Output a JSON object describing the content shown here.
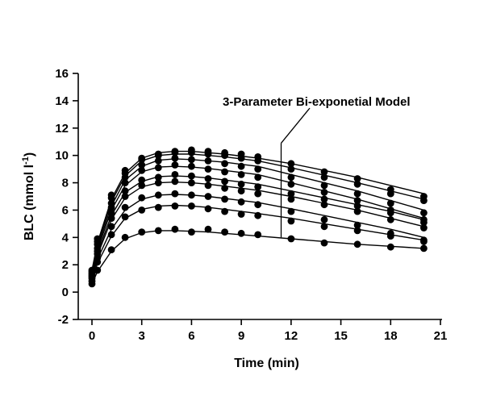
{
  "chart_data": {
    "type": "scatter",
    "xlabel": "Time (min)",
    "ylabel_main": "BLC (mmol l",
    "ylabel_sup": "-1",
    "ylabel_close": ")",
    "xlim": [
      -1,
      21
    ],
    "ylim": [
      -2,
      16
    ],
    "xticks": [
      0,
      3,
      6,
      9,
      12,
      15,
      18,
      21
    ],
    "yticks": [
      -2,
      0,
      2,
      4,
      6,
      8,
      10,
      12,
      14,
      16
    ],
    "grid": false,
    "legend": "none",
    "annotation": {
      "text": "3-Parameter Bi-exponetial Model",
      "points_to": {
        "x": 11.4,
        "y_from": 4.0,
        "y_to": 10.9
      }
    },
    "sample_times": [
      0,
      0.33,
      1.17,
      2.0,
      3.0,
      4.0,
      5.0,
      6.0,
      7.0,
      8.0,
      9.0,
      10.0,
      12.0,
      14.0,
      16.0,
      18.0,
      20.0
    ],
    "series": [
      {
        "model": [
          1.6,
          3.6,
          6.8,
          8.7,
          9.8,
          10.2,
          10.3,
          10.3,
          10.2,
          10.1,
          9.95,
          9.8,
          9.4,
          8.9,
          8.4,
          7.8,
          7.2
        ],
        "points": [
          1.6,
          3.9,
          7.1,
          8.9,
          9.8,
          10.1,
          10.3,
          10.4,
          10.3,
          10.2,
          10.1,
          9.9,
          9.4,
          8.8,
          8.3,
          7.5,
          7.0
        ]
      },
      {
        "model": [
          1.5,
          3.5,
          6.6,
          8.5,
          9.6,
          10.0,
          10.1,
          10.1,
          10.0,
          9.9,
          9.75,
          9.6,
          9.1,
          8.55,
          8.0,
          7.4,
          6.8
        ],
        "points": [
          1.5,
          3.7,
          6.9,
          8.7,
          9.7,
          10.0,
          10.2,
          10.2,
          10.1,
          10.0,
          9.8,
          9.6,
          9.0,
          8.4,
          7.9,
          7.2,
          6.7
        ]
      },
      {
        "model": [
          1.4,
          3.3,
          6.3,
          8.2,
          9.2,
          9.65,
          9.75,
          9.7,
          9.6,
          9.5,
          9.35,
          9.2,
          8.6,
          8.0,
          7.4,
          6.7,
          6.0
        ],
        "points": [
          1.4,
          3.5,
          6.5,
          8.4,
          9.3,
          9.6,
          9.8,
          9.7,
          9.6,
          9.4,
          9.2,
          9.0,
          8.4,
          7.8,
          7.2,
          6.5,
          5.8
        ]
      },
      {
        "model": [
          1.3,
          3.1,
          6.0,
          7.8,
          8.8,
          9.15,
          9.2,
          9.15,
          9.05,
          8.9,
          8.75,
          8.6,
          8.0,
          7.4,
          6.8,
          6.1,
          5.4
        ],
        "points": [
          1.3,
          3.2,
          6.2,
          8.0,
          8.9,
          9.1,
          9.3,
          9.2,
          9.0,
          8.8,
          8.6,
          8.4,
          7.9,
          7.3,
          6.7,
          6.0,
          5.3
        ]
      },
      {
        "model": [
          1.2,
          2.9,
          5.6,
          7.3,
          8.1,
          8.45,
          8.5,
          8.45,
          8.35,
          8.2,
          8.05,
          7.9,
          7.4,
          6.9,
          6.4,
          5.9,
          5.3
        ],
        "points": [
          1.2,
          3.0,
          5.8,
          7.4,
          8.2,
          8.4,
          8.6,
          8.5,
          8.3,
          8.1,
          7.9,
          7.7,
          7.2,
          6.8,
          6.3,
          5.8,
          5.1
        ]
      },
      {
        "model": [
          1.1,
          2.7,
          5.3,
          6.9,
          7.7,
          8.0,
          8.05,
          8.0,
          7.9,
          7.75,
          7.6,
          7.45,
          7.0,
          6.5,
          6.0,
          5.4,
          4.8
        ],
        "points": [
          1.1,
          2.8,
          5.4,
          7.0,
          7.8,
          8.0,
          8.1,
          8.0,
          7.8,
          7.6,
          7.4,
          7.2,
          6.8,
          6.4,
          5.9,
          5.3,
          4.7
        ]
      },
      {
        "model": [
          1.0,
          2.4,
          4.6,
          6.0,
          6.8,
          7.1,
          7.15,
          7.1,
          7.0,
          6.85,
          6.7,
          6.55,
          6.1,
          5.6,
          5.1,
          4.6,
          4.0
        ],
        "points": [
          1.0,
          2.5,
          4.8,
          6.2,
          6.9,
          7.1,
          7.2,
          7.1,
          7.0,
          6.8,
          6.6,
          6.4,
          5.9,
          5.3,
          4.9,
          4.3,
          3.8
        ]
      },
      {
        "model": [
          0.8,
          2.1,
          4.1,
          5.4,
          6.05,
          6.3,
          6.35,
          6.3,
          6.2,
          6.05,
          5.9,
          5.75,
          5.4,
          5.0,
          4.6,
          4.2,
          3.8
        ],
        "points": [
          0.8,
          2.2,
          4.2,
          5.5,
          6.0,
          6.2,
          6.3,
          6.3,
          6.1,
          5.9,
          5.7,
          5.6,
          5.2,
          4.8,
          4.5,
          4.1,
          3.7
        ]
      },
      {
        "model": [
          0.6,
          1.5,
          3.0,
          3.9,
          4.35,
          4.5,
          4.5,
          4.45,
          4.4,
          4.3,
          4.2,
          4.1,
          3.9,
          3.7,
          3.5,
          3.35,
          3.2
        ],
        "points": [
          0.6,
          1.6,
          3.1,
          4.0,
          4.4,
          4.5,
          4.6,
          4.4,
          4.6,
          4.4,
          4.3,
          4.2,
          3.9,
          3.6,
          3.5,
          3.3,
          3.2
        ]
      }
    ]
  }
}
